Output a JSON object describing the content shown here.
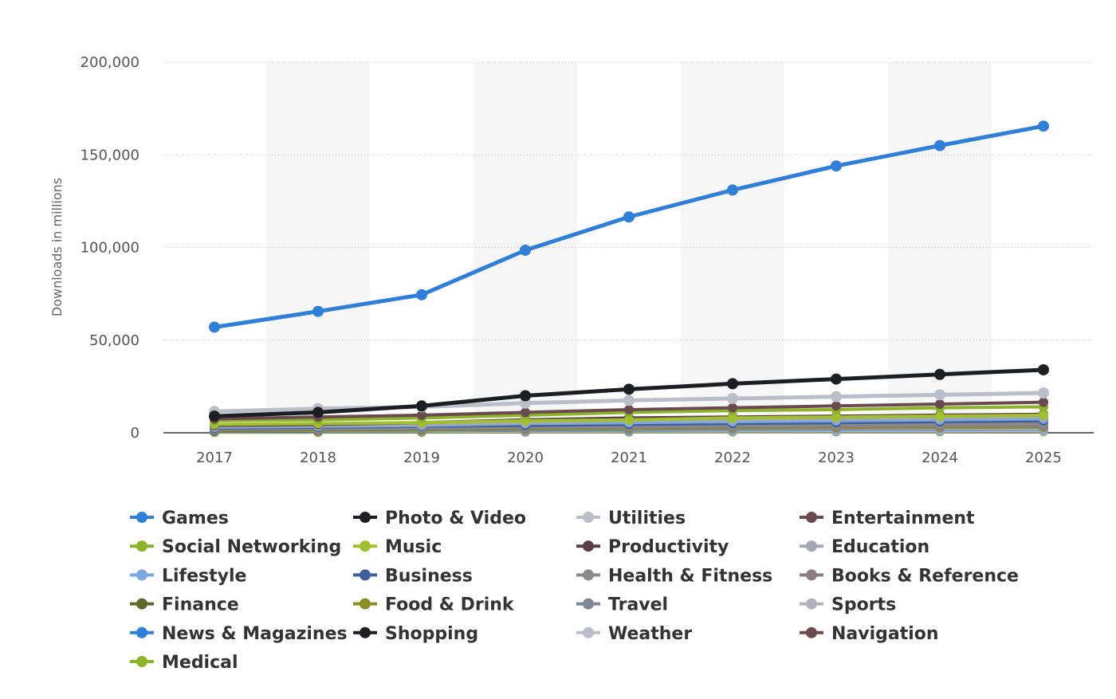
{
  "chart_data": {
    "type": "line",
    "title": "",
    "xlabel": "",
    "ylabel": "Downloads in millions",
    "x": [
      "2017",
      "2018",
      "2019",
      "2020",
      "2021",
      "2022",
      "2023",
      "2024",
      "2025"
    ],
    "ylim": [
      0,
      200000
    ],
    "yticks": [
      0,
      50000,
      100000,
      150000,
      200000
    ],
    "ytick_labels": [
      "0",
      "50,000",
      "100,000",
      "150,000",
      "200,000"
    ],
    "grid": "horizontal dotted",
    "legend_position": "bottom",
    "series": [
      {
        "name": "Games",
        "color": "#2f7ed8",
        "values": [
          57000,
          65500,
          74500,
          98500,
          116500,
          131000,
          144000,
          155000,
          165500
        ]
      },
      {
        "name": "Photo & Video",
        "color": "#1b1f24",
        "values": [
          9000,
          11000,
          14500,
          20000,
          23500,
          26500,
          29000,
          31500,
          34000
        ]
      },
      {
        "name": "Utilities",
        "color": "#b9bec8",
        "values": [
          11500,
          13000,
          14000,
          16000,
          17500,
          18500,
          19500,
          20500,
          21500
        ]
      },
      {
        "name": "Entertainment",
        "color": "#6b4a4f",
        "values": [
          7500,
          8500,
          9500,
          11000,
          12500,
          13500,
          14500,
          15500,
          16500
        ]
      },
      {
        "name": "Social Networking",
        "color": "#8db32b",
        "values": [
          6500,
          7000,
          8000,
          9500,
          11000,
          12000,
          12500,
          13500,
          14000
        ]
      },
      {
        "name": "Music",
        "color": "#a0c030",
        "values": [
          4500,
          5000,
          5500,
          6500,
          7000,
          8000,
          8500,
          9000,
          9500
        ]
      },
      {
        "name": "Productivity",
        "color": "#5a3e46",
        "values": [
          4000,
          4500,
          5500,
          7000,
          8000,
          8500,
          9000,
          9500,
          10000
        ]
      },
      {
        "name": "Education",
        "color": "#a3a8b4",
        "values": [
          3500,
          4000,
          4500,
          5500,
          6500,
          7000,
          7500,
          8000,
          8500
        ]
      },
      {
        "name": "Lifestyle",
        "color": "#7ba7e0",
        "values": [
          3000,
          3500,
          4000,
          5000,
          5500,
          6000,
          6500,
          7000,
          7500
        ]
      },
      {
        "name": "Business",
        "color": "#3f5f9a",
        "values": [
          2500,
          3000,
          3500,
          4000,
          4500,
          5000,
          5500,
          6000,
          6500
        ]
      },
      {
        "name": "Health & Fitness",
        "color": "#8a8a8a",
        "values": [
          2000,
          2300,
          2600,
          3200,
          3600,
          4000,
          4300,
          4600,
          5000
        ]
      },
      {
        "name": "Books & Reference",
        "color": "#8a7e80",
        "values": [
          1800,
          2000,
          2300,
          2700,
          3000,
          3300,
          3500,
          3800,
          4000
        ]
      },
      {
        "name": "Finance",
        "color": "#5c6a2e",
        "values": [
          1500,
          1800,
          2100,
          2600,
          3000,
          3300,
          3600,
          3900,
          4200
        ]
      },
      {
        "name": "Food & Drink",
        "color": "#8a8f2a",
        "values": [
          1200,
          1400,
          1600,
          2100,
          2400,
          2700,
          2900,
          3100,
          3300
        ]
      },
      {
        "name": "Travel",
        "color": "#7e8698",
        "values": [
          1500,
          1700,
          1800,
          1600,
          1900,
          2200,
          2500,
          2700,
          2900
        ]
      },
      {
        "name": "Sports",
        "color": "#b0b3bb",
        "values": [
          1100,
          1300,
          1400,
          1600,
          1800,
          1900,
          2000,
          2100,
          2200
        ]
      },
      {
        "name": "News & Magazines",
        "color": "#2f7ed8",
        "values": [
          1000,
          1100,
          1200,
          1400,
          1500,
          1600,
          1700,
          1800,
          1900
        ]
      },
      {
        "name": "Shopping",
        "color": "#1b1f24",
        "values": [
          900,
          1000,
          1200,
          1500,
          1700,
          1900,
          2000,
          2100,
          2200
        ]
      },
      {
        "name": "Weather",
        "color": "#b9bec8",
        "values": [
          700,
          800,
          850,
          900,
          950,
          1000,
          1050,
          1100,
          1150
        ]
      },
      {
        "name": "Navigation",
        "color": "#6b4a4f",
        "values": [
          600,
          650,
          700,
          700,
          800,
          850,
          900,
          950,
          1000
        ]
      },
      {
        "name": "Medical",
        "color": "#8db32b",
        "values": [
          300,
          350,
          400,
          500,
          550,
          600,
          650,
          700,
          750
        ]
      }
    ]
  }
}
